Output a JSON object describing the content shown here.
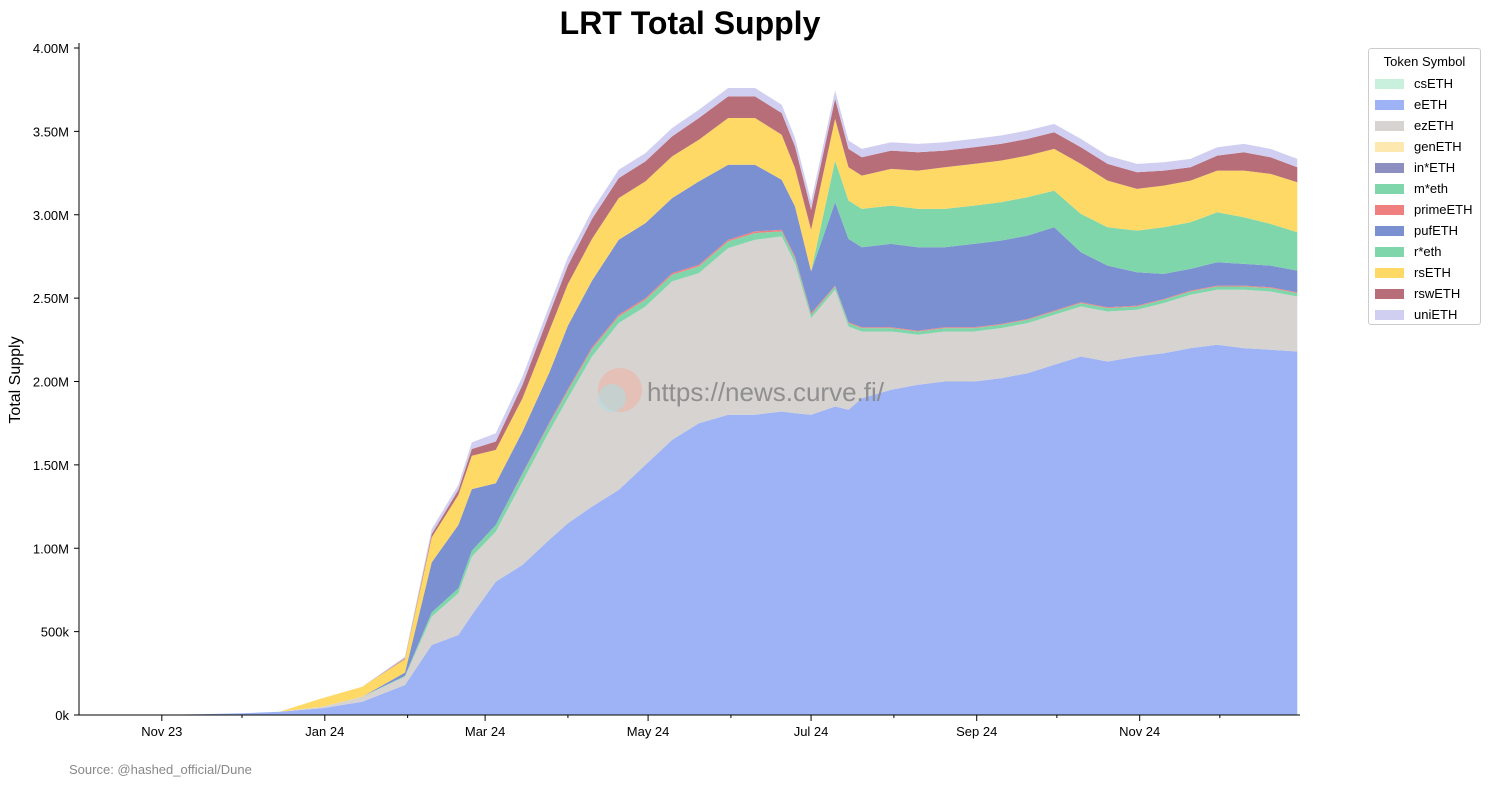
{
  "chart_data": {
    "type": "area",
    "stacked": true,
    "title": "LRT Total Supply",
    "ylabel": "Total Supply",
    "xlabel": "",
    "x_start": "2023-10-01",
    "x_end": "2024-12-31",
    "ylim": [
      0,
      4000000
    ],
    "yticks": [
      0,
      500000,
      1000000,
      1500000,
      2000000,
      2500000,
      3000000,
      3500000,
      4000000
    ],
    "ytick_labels": [
      "0k",
      "500k",
      "1.00M",
      "1.50M",
      "2.00M",
      "2.50M",
      "3.00M",
      "3.50M",
      "4.00M"
    ],
    "xtick_labels": [
      "Nov 23",
      "Jan 24",
      "Mar 24",
      "May 24",
      "Jul 24",
      "Sep 24",
      "Nov 24"
    ],
    "xtick_dates": [
      "2023-11-01",
      "2024-01-01",
      "2024-03-01",
      "2024-05-01",
      "2024-07-01",
      "2024-09-01",
      "2024-11-01"
    ],
    "grid": false,
    "legend": {
      "title": "Token Symbol",
      "placement": "right"
    },
    "dates": [
      "2023-10-01",
      "2023-10-15",
      "2023-11-01",
      "2023-11-15",
      "2023-12-01",
      "2023-12-15",
      "2023-12-31",
      "2024-01-15",
      "2024-01-31",
      "2024-02-10",
      "2024-02-20",
      "2024-02-25",
      "2024-03-05",
      "2024-03-15",
      "2024-03-25",
      "2024-04-01",
      "2024-04-10",
      "2024-04-20",
      "2024-04-30",
      "2024-05-10",
      "2024-05-20",
      "2024-05-31",
      "2024-06-10",
      "2024-06-20",
      "2024-06-25",
      "2024-07-01",
      "2024-07-10",
      "2024-07-15",
      "2024-07-20",
      "2024-07-31",
      "2024-08-10",
      "2024-08-20",
      "2024-08-31",
      "2024-09-10",
      "2024-09-20",
      "2024-09-30",
      "2024-10-10",
      "2024-10-20",
      "2024-10-31",
      "2024-11-10",
      "2024-11-20",
      "2024-11-30",
      "2024-12-10",
      "2024-12-20",
      "2024-12-30"
    ],
    "series": [
      {
        "name": "csETH",
        "color": "#c8f0dc",
        "values": [
          0,
          0,
          0,
          0,
          0,
          0,
          0,
          0,
          0,
          0,
          0,
          0,
          0,
          0,
          0,
          0,
          0,
          0,
          0,
          0,
          0,
          0,
          0,
          0,
          0,
          0,
          0,
          0,
          0,
          0,
          0,
          0,
          0,
          0,
          0,
          0,
          0,
          0,
          0,
          0,
          0,
          0,
          0,
          0,
          0
        ]
      },
      {
        "name": "eETH",
        "color": "#9db3f5",
        "values": [
          0,
          0,
          2000,
          5000,
          10000,
          20000,
          40000,
          80000,
          180000,
          420000,
          480000,
          600000,
          800000,
          900000,
          1050000,
          1150000,
          1250000,
          1350000,
          1500000,
          1650000,
          1750000,
          1800000,
          1800000,
          1820000,
          1810000,
          1800000,
          1850000,
          1830000,
          1900000,
          1950000,
          1980000,
          2000000,
          2000000,
          2020000,
          2050000,
          2100000,
          2150000,
          2120000,
          2150000,
          2170000,
          2200000,
          2220000,
          2200000,
          2190000,
          2180000
        ]
      },
      {
        "name": "ezETH",
        "color": "#d6d3d0",
        "values": [
          0,
          0,
          0,
          0,
          0,
          0,
          10000,
          30000,
          50000,
          170000,
          250000,
          350000,
          300000,
          500000,
          650000,
          750000,
          900000,
          1000000,
          950000,
          950000,
          900000,
          1000000,
          1050000,
          1050000,
          900000,
          580000,
          700000,
          500000,
          400000,
          350000,
          300000,
          300000,
          300000,
          300000,
          300000,
          300000,
          300000,
          300000,
          280000,
          300000,
          320000,
          330000,
          350000,
          350000,
          330000
        ]
      },
      {
        "name": "genETH",
        "color": "#fde8b0",
        "values": [
          0,
          0,
          0,
          0,
          0,
          0,
          0,
          0,
          0,
          0,
          0,
          0,
          0,
          0,
          0,
          0,
          0,
          0,
          0,
          0,
          0,
          0,
          0,
          0,
          0,
          0,
          0,
          0,
          0,
          0,
          0,
          0,
          0,
          0,
          0,
          0,
          0,
          0,
          0,
          0,
          0,
          0,
          0,
          0,
          0
        ]
      },
      {
        "name": "in*ETH",
        "color": "#8c8fc0",
        "values": [
          0,
          0,
          0,
          0,
          0,
          0,
          0,
          0,
          0,
          0,
          0,
          0,
          0,
          0,
          0,
          0,
          0,
          0,
          0,
          0,
          0,
          0,
          0,
          0,
          0,
          0,
          0,
          0,
          0,
          0,
          0,
          0,
          0,
          0,
          0,
          0,
          0,
          0,
          0,
          0,
          0,
          0,
          0,
          0,
          0
        ]
      },
      {
        "name": "m*eth",
        "color": "#7fd6ab",
        "values": [
          0,
          0,
          0,
          0,
          0,
          0,
          0,
          0,
          5000,
          25000,
          30000,
          35000,
          40000,
          45000,
          45000,
          45000,
          45000,
          40000,
          40000,
          40000,
          40000,
          40000,
          40000,
          30000,
          30000,
          20000,
          20000,
          20000,
          20000,
          20000,
          20000,
          20000,
          20000,
          20000,
          20000,
          20000,
          20000,
          20000,
          20000,
          20000,
          20000,
          20000,
          20000,
          20000,
          20000
        ]
      },
      {
        "name": "primeETH",
        "color": "#f08080",
        "values": [
          0,
          0,
          0,
          0,
          0,
          0,
          0,
          0,
          0,
          0,
          0,
          0,
          0,
          5000,
          8000,
          10000,
          10000,
          10000,
          10000,
          10000,
          10000,
          10000,
          10000,
          10000,
          10000,
          10000,
          5000,
          5000,
          5000,
          5000,
          5000,
          5000,
          5000,
          5000,
          5000,
          5000,
          5000,
          5000,
          5000,
          5000,
          5000,
          5000,
          5000,
          5000,
          5000
        ]
      },
      {
        "name": "pufETH",
        "color": "#7b90d0",
        "values": [
          0,
          0,
          0,
          0,
          0,
          0,
          0,
          0,
          20000,
          300000,
          380000,
          370000,
          250000,
          250000,
          300000,
          380000,
          400000,
          450000,
          450000,
          450000,
          500000,
          450000,
          400000,
          300000,
          300000,
          250000,
          500000,
          500000,
          480000,
          500000,
          500000,
          480000,
          500000,
          500000,
          500000,
          500000,
          300000,
          250000,
          200000,
          150000,
          130000,
          140000,
          130000,
          130000,
          130000
        ]
      },
      {
        "name": "r*eth",
        "color": "#7fd6ab",
        "values": [
          0,
          0,
          0,
          0,
          0,
          0,
          0,
          0,
          0,
          0,
          0,
          0,
          0,
          0,
          0,
          0,
          0,
          0,
          0,
          0,
          0,
          0,
          0,
          0,
          0,
          0,
          250000,
          230000,
          230000,
          230000,
          230000,
          230000,
          230000,
          230000,
          230000,
          220000,
          230000,
          230000,
          250000,
          280000,
          280000,
          300000,
          280000,
          250000,
          230000
        ]
      },
      {
        "name": "rsETH",
        "color": "#ffd966",
        "values": [
          0,
          0,
          0,
          0,
          0,
          0,
          50000,
          60000,
          80000,
          150000,
          180000,
          200000,
          200000,
          200000,
          250000,
          250000,
          250000,
          250000,
          250000,
          250000,
          250000,
          280000,
          280000,
          270000,
          230000,
          250000,
          250000,
          200000,
          200000,
          220000,
          230000,
          250000,
          250000,
          250000,
          250000,
          250000,
          300000,
          280000,
          250000,
          250000,
          250000,
          250000,
          280000,
          300000,
          300000
        ]
      },
      {
        "name": "rswETH",
        "color": "#b86e78",
        "values": [
          0,
          0,
          0,
          0,
          0,
          0,
          0,
          0,
          5000,
          20000,
          30000,
          40000,
          50000,
          80000,
          100000,
          110000,
          120000,
          120000,
          120000,
          120000,
          130000,
          130000,
          130000,
          130000,
          130000,
          120000,
          120000,
          110000,
          110000,
          110000,
          110000,
          100000,
          100000,
          100000,
          100000,
          100000,
          100000,
          100000,
          100000,
          90000,
          80000,
          90000,
          110000,
          100000,
          90000
        ]
      },
      {
        "name": "uniETH",
        "color": "#d0cff2",
        "values": [
          0,
          0,
          0,
          0,
          0,
          0,
          0,
          0,
          10000,
          30000,
          30000,
          40000,
          50000,
          50000,
          50000,
          50000,
          50000,
          50000,
          50000,
          50000,
          50000,
          50000,
          50000,
          50000,
          50000,
          50000,
          50000,
          50000,
          50000,
          50000,
          50000,
          50000,
          50000,
          50000,
          50000,
          50000,
          50000,
          50000,
          50000,
          50000,
          50000,
          50000,
          50000,
          50000,
          50000
        ]
      }
    ]
  },
  "watermark": "https://news.curve.fi/",
  "source": "Source: @hashed_official/Dune"
}
